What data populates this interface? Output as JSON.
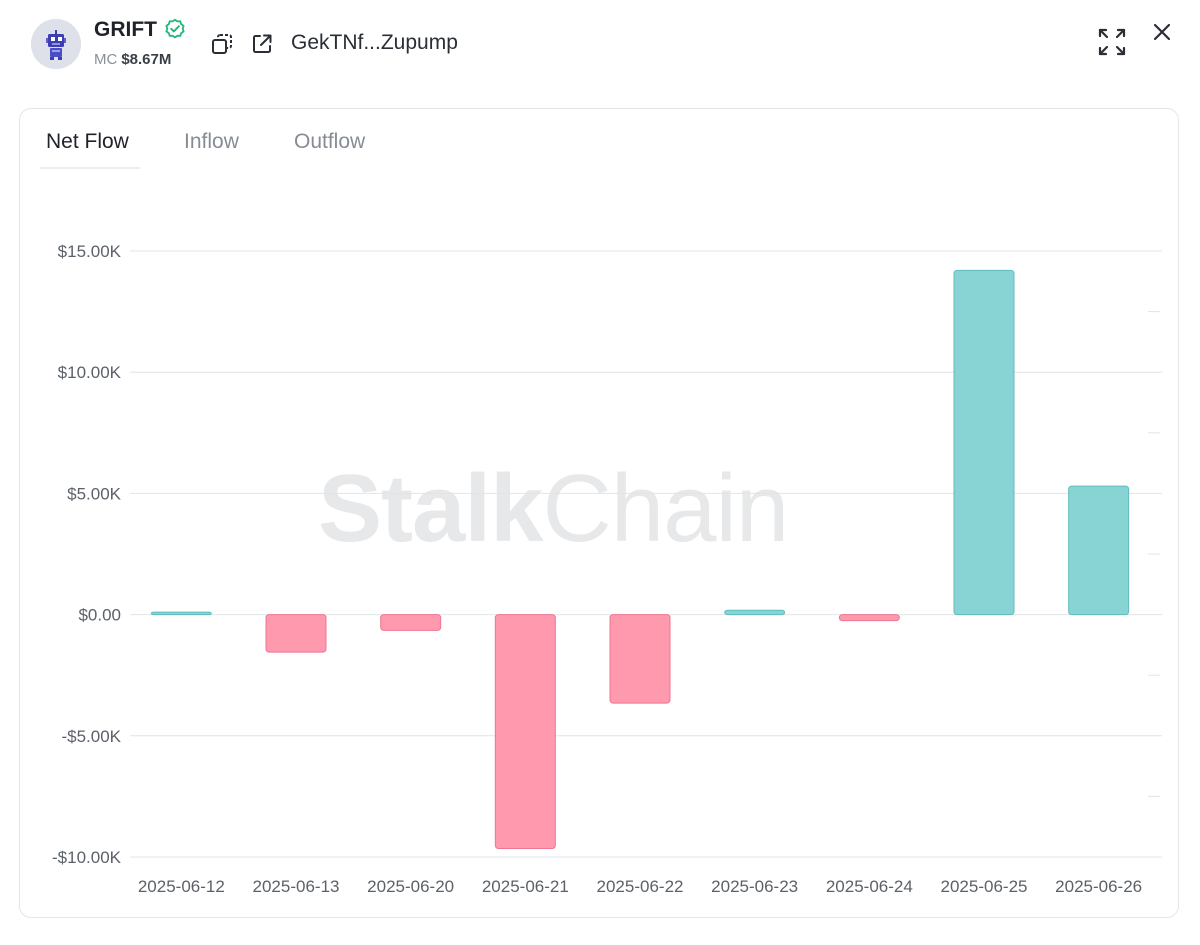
{
  "header": {
    "token_name": "GRIFT",
    "mc_label": "MC",
    "mc_value": "$8.67M",
    "contract_address": "GekTNf...Zupump",
    "icons": {
      "avatar": "robot-avatar-icon",
      "verified": "verified-check-icon",
      "copy": "copy-icon",
      "external": "external-link-icon",
      "fullscreen": "fullscreen-icon",
      "close": "close-icon"
    }
  },
  "tabs": [
    {
      "label": "Net Flow",
      "active": true
    },
    {
      "label": "Inflow",
      "active": false
    },
    {
      "label": "Outflow",
      "active": false
    }
  ],
  "watermark": {
    "bold": "Stalk",
    "light": "Chain"
  },
  "colors": {
    "positive_fill": "#88d4d4",
    "positive_stroke": "#5fbdbd",
    "negative_fill": "#ff9aae",
    "negative_stroke": "#ef7591",
    "grid": "#e2e4e7",
    "tick_text": "#5c6169",
    "watermark": "#e7e8ea"
  },
  "chart_data": {
    "type": "bar",
    "categories": [
      "2025-06-12",
      "2025-06-13",
      "2025-06-20",
      "2025-06-21",
      "2025-06-22",
      "2025-06-23",
      "2025-06-24",
      "2025-06-25",
      "2025-06-26"
    ],
    "values": [
      50,
      -1550,
      -650,
      -9650,
      -3650,
      180,
      -250,
      14200,
      5300
    ],
    "yticks": [
      15000,
      10000,
      5000,
      0,
      -5000,
      -10000
    ],
    "ytick_labels": [
      "$15.00K",
      "$10.00K",
      "$5.00K",
      "$0.00",
      "-$5.00K",
      "-$10.00K"
    ],
    "ylim": [
      -10000,
      15000
    ],
    "grid": true,
    "legend": "none",
    "title": "",
    "xlabel": "",
    "ylabel": ""
  }
}
